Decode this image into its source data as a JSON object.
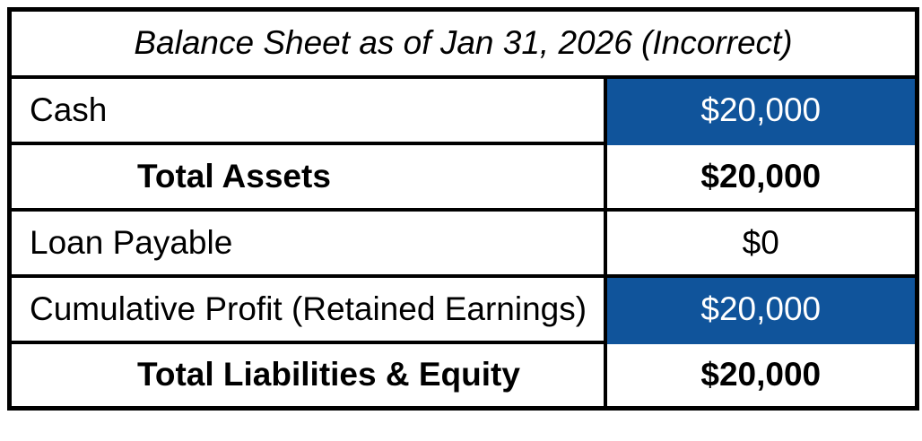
{
  "table": {
    "title": "Balance Sheet as of Jan 31, 2026 (Incorrect)",
    "columns": [
      "account",
      "amount"
    ],
    "rows": [
      {
        "label": "Cash",
        "value": "$20,000",
        "highlight": true,
        "bold": false,
        "indent": false
      },
      {
        "label": "Total Assets",
        "value": "$20,000",
        "highlight": false,
        "bold": true,
        "indent": true
      },
      {
        "label": "Loan Payable",
        "value": "$0",
        "highlight": false,
        "bold": false,
        "indent": false
      },
      {
        "label": "Cumulative Profit (Retained Earnings)",
        "value": "$20,000",
        "highlight": true,
        "bold": false,
        "indent": false
      },
      {
        "label": "Total Liabilities & Equity",
        "value": "$20,000",
        "highlight": false,
        "bold": true,
        "indent": true
      }
    ],
    "colors": {
      "highlight_bg": "#10549B",
      "highlight_text": "#FFFFFF",
      "border": "#000000",
      "text": "#000000"
    }
  }
}
